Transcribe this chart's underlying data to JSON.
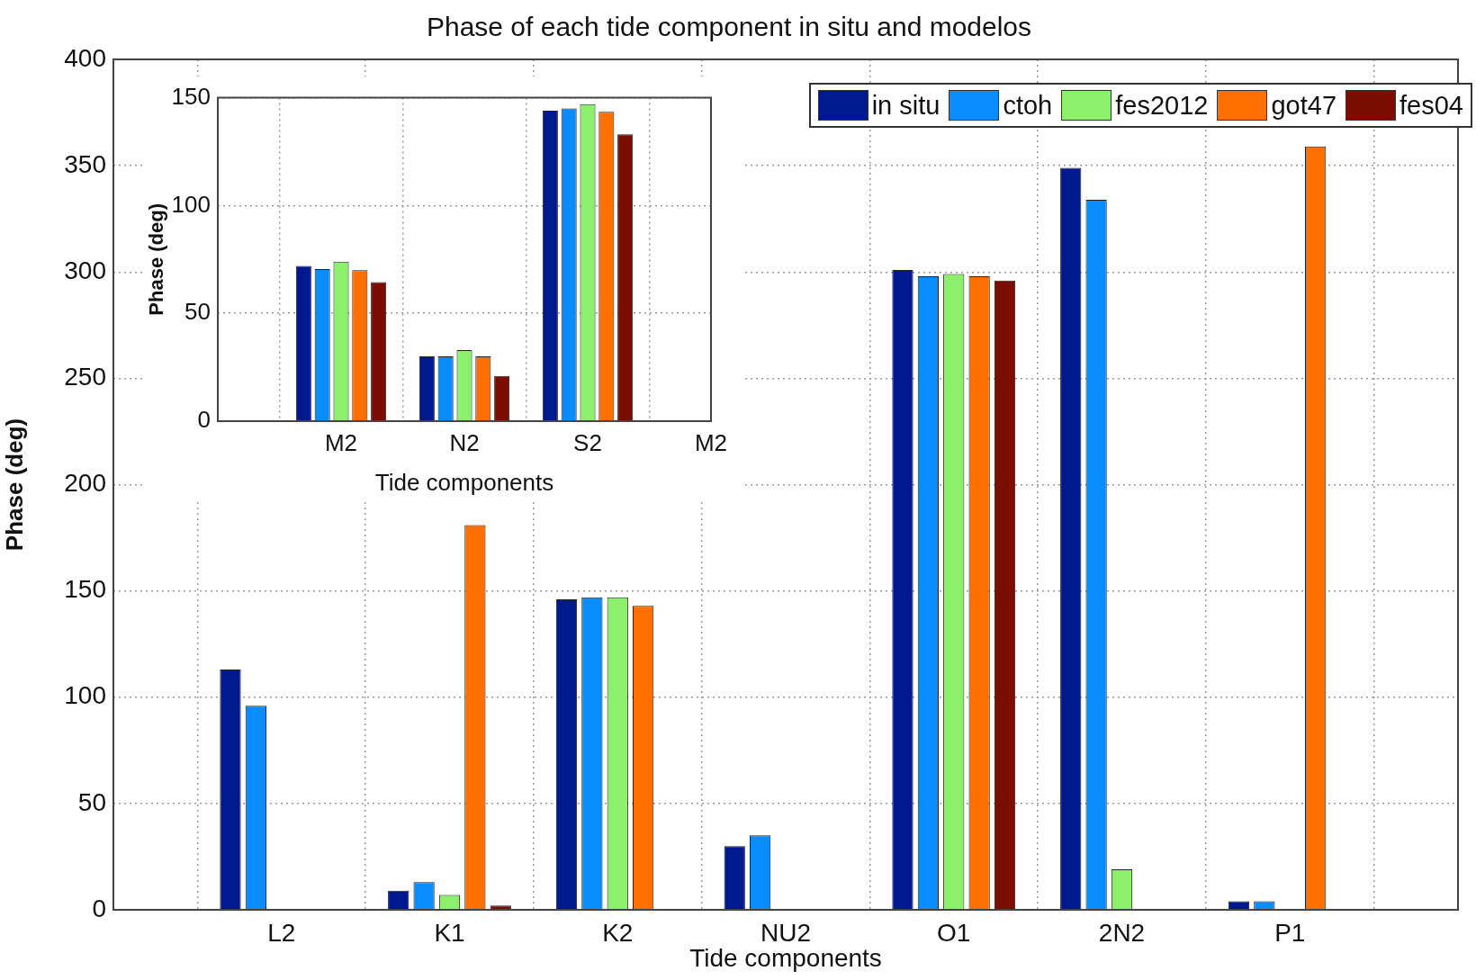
{
  "chart_data": [
    {
      "type": "bar",
      "title": "Phase of each tide component in situ and modelos",
      "xlabel": "Tide components",
      "ylabel": "Phase (deg)",
      "categories": [
        null,
        "L2",
        "K1",
        "K2",
        "NU2",
        "O1",
        "2N2",
        "P1",
        null
      ],
      "series": [
        {
          "name": "in situ",
          "color": "#00188f",
          "values": [
            null,
            113,
            9,
            146,
            30,
            301,
            349,
            4,
            null
          ]
        },
        {
          "name": "ctoh",
          "color": "#0a8cff",
          "values": [
            null,
            96,
            13,
            147,
            35,
            298,
            334,
            4,
            null
          ]
        },
        {
          "name": "fes2012",
          "color": "#8cf06c",
          "values": [
            null,
            null,
            7,
            147,
            null,
            299,
            19,
            null,
            null
          ]
        },
        {
          "name": "got47",
          "color": "#ff7000",
          "values": [
            null,
            null,
            181,
            143,
            null,
            298,
            null,
            359,
            null
          ]
        },
        {
          "name": "fes04",
          "color": "#7a0c00",
          "values": [
            null,
            null,
            2,
            null,
            null,
            296,
            null,
            null,
            null
          ]
        }
      ],
      "ylim": [
        0,
        400
      ],
      "yticks": [
        0,
        50,
        100,
        150,
        200,
        250,
        300,
        350,
        400
      ],
      "grid": true,
      "legend": "top right"
    },
    {
      "type": "bar",
      "xlabel": "Tide components",
      "ylabel": "Phase (deg)",
      "categories": [
        null,
        "M2",
        "N2",
        "S2",
        "M2"
      ],
      "series": [
        {
          "color": "#00188f",
          "values": [
            null,
            72,
            30,
            144,
            null
          ]
        },
        {
          "color": "#0a8cff",
          "values": [
            null,
            70.5,
            30,
            145,
            null
          ]
        },
        {
          "color": "#8cf06c",
          "values": [
            null,
            74,
            33,
            147,
            null
          ]
        },
        {
          "color": "#ff7000",
          "values": [
            null,
            70,
            30,
            143.5,
            null
          ]
        },
        {
          "color": "#7a0c00",
          "values": [
            null,
            64.5,
            21,
            133,
            null
          ]
        }
      ],
      "ylim": [
        0,
        150
      ],
      "yticks": [
        0,
        50,
        100,
        150
      ],
      "grid": true
    }
  ]
}
